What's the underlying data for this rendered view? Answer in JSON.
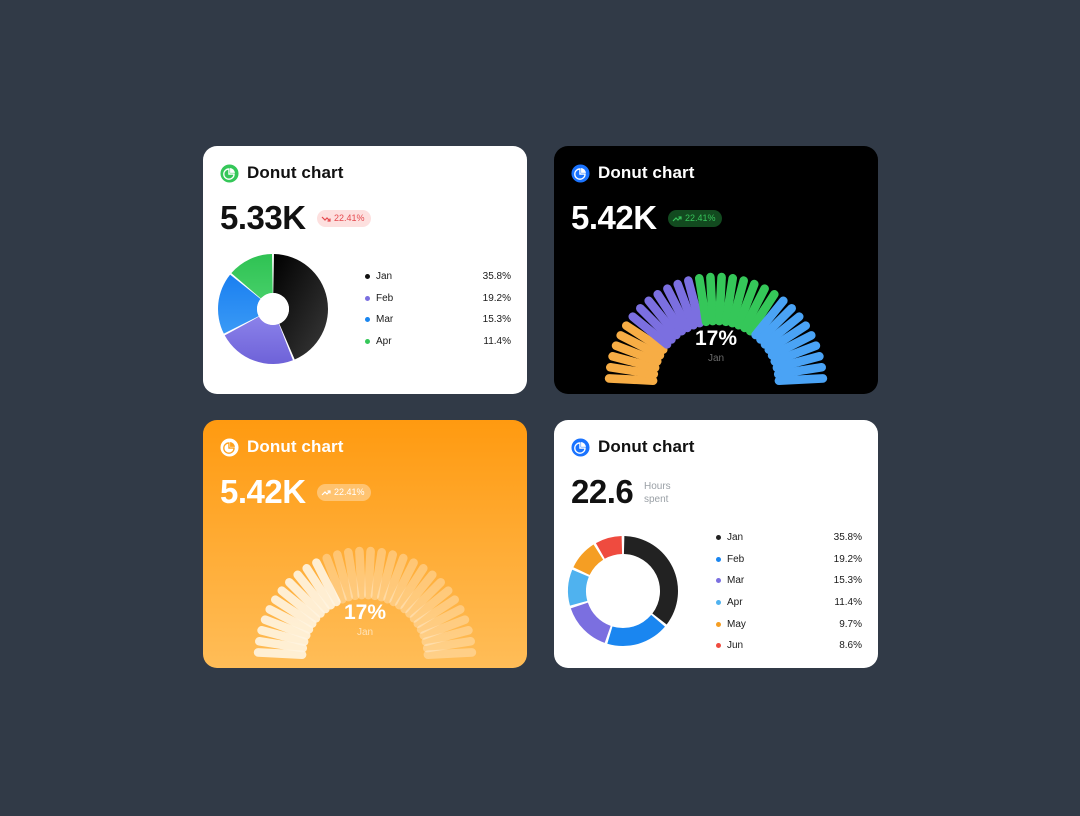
{
  "cards": [
    {
      "title": "Donut chart",
      "value": "5.33K",
      "badge": "22.41%",
      "badge_trend": "down",
      "icon": "pie-chart-icon",
      "accent": "#35c759"
    },
    {
      "title": "Donut chart",
      "value": "5.42K",
      "badge": "22.41%",
      "badge_trend": "up",
      "icon": "pie-chart-icon",
      "accent": "#1a73ff",
      "center_value": "17%",
      "center_label": "Jan"
    },
    {
      "title": "Donut chart",
      "value": "5.42K",
      "badge": "22.41%",
      "badge_trend": "up",
      "icon": "pie-chart-icon",
      "accent": "#ffffff",
      "center_value": "17%",
      "center_label": "Jan"
    },
    {
      "title": "Donut chart",
      "value": "22.6",
      "unit_line1": "Hours",
      "unit_line2": "spent",
      "icon": "pie-chart-icon",
      "accent": "#1a73ff"
    }
  ],
  "chart_data": [
    {
      "type": "pie",
      "categories": [
        "Jan",
        "Feb",
        "Mar",
        "Apr"
      ],
      "values": [
        35.8,
        19.2,
        15.3,
        11.4
      ],
      "labels": [
        "35.8%",
        "19.2%",
        "15.3%",
        "11.4%"
      ],
      "colors": [
        "#111111",
        "#7b6fe0",
        "#1a86f0",
        "#35c759"
      ]
    },
    {
      "type": "bar",
      "style": "radial-semicircle",
      "segments": 30,
      "color_groups": [
        {
          "color": "#f7ad45",
          "count": 6
        },
        {
          "color": "#7b6fe0",
          "count": 7
        },
        {
          "color": "#35c759",
          "count": 8
        },
        {
          "color": "#4aa3f5",
          "count": 9
        }
      ]
    },
    {
      "type": "bar",
      "style": "radial-semicircle",
      "segments": 30,
      "highlighted": 11,
      "colors": {
        "highlight": "#fff3de",
        "rest": "#ffffff"
      }
    },
    {
      "type": "pie",
      "categories": [
        "Jan",
        "Feb",
        "Mar",
        "Apr",
        "May",
        "Jun"
      ],
      "values": [
        35.8,
        19.2,
        15.3,
        11.4,
        9.7,
        8.6
      ],
      "labels": [
        "35.8%",
        "19.2%",
        "15.3%",
        "11.4%",
        "9.7%",
        "8.6%"
      ],
      "colors": [
        "#222222",
        "#1a86f0",
        "#7b6fe0",
        "#4fb2ef",
        "#f59e23",
        "#ef4b3f"
      ]
    }
  ]
}
